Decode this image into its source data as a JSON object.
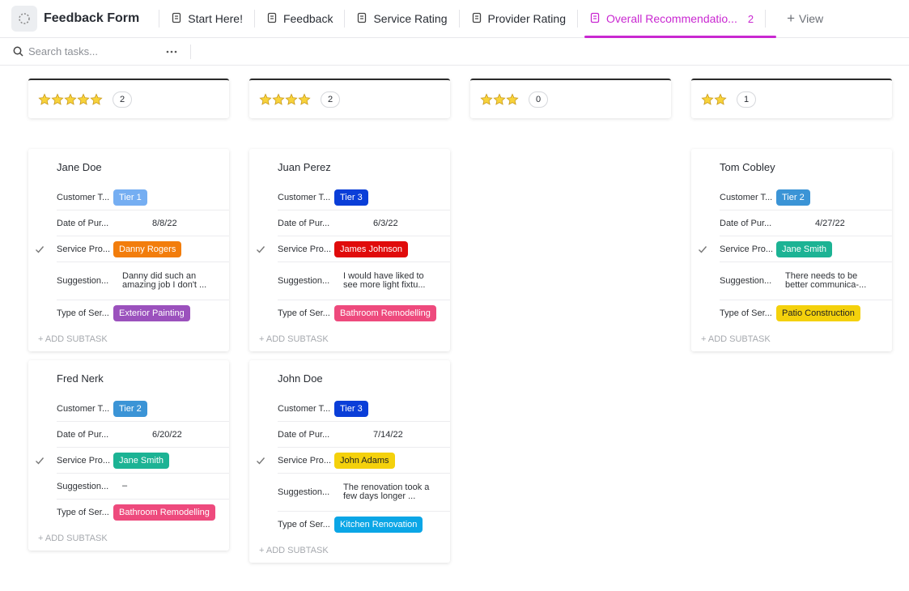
{
  "header": {
    "title": "Feedback Form",
    "tabs": [
      "Start Here!",
      "Feedback",
      "Service Rating",
      "Provider Rating",
      "Overall Recommendatio..."
    ],
    "active_tab_count": "2",
    "add_view": "View"
  },
  "toolbar": {
    "search_placeholder": "Search tasks..."
  },
  "columns": [
    {
      "rating": 5,
      "count": 2,
      "cards": [
        {
          "name": "Jane Doe",
          "fields": [
            {
              "label": "Customer T...",
              "value": "Tier 1",
              "color": "#75aef2"
            },
            {
              "label": "Date of Pur...",
              "value": "8/8/22"
            },
            {
              "label": "Service Pro...",
              "value": "Danny Rogers",
              "color": "#f27d0c"
            },
            {
              "label": "Suggestion...",
              "value": "Danny did such an amazing job I don't ..."
            },
            {
              "label": "Type of Ser...",
              "value": "Exterior Painting",
              "color": "#9b51bd"
            }
          ],
          "add_subtask": "+ ADD SUBTASK"
        },
        {
          "name": "Fred Nerk",
          "fields": [
            {
              "label": "Customer T...",
              "value": "Tier 2",
              "color": "#3b94d6"
            },
            {
              "label": "Date of Pur...",
              "value": "6/20/22"
            },
            {
              "label": "Service Pro...",
              "value": "Jane Smith",
              "color": "#1cb394"
            },
            {
              "label": "Suggestion...",
              "value": "–"
            },
            {
              "label": "Type of Ser...",
              "value": "Bathroom Remodelling",
              "color": "#ee4a7d"
            }
          ],
          "add_subtask": "+ ADD SUBTASK"
        }
      ]
    },
    {
      "rating": 4,
      "count": 2,
      "cards": [
        {
          "name": "Juan Perez",
          "fields": [
            {
              "label": "Customer T...",
              "value": "Tier 3",
              "color": "#0a3ed8"
            },
            {
              "label": "Date of Pur...",
              "value": "6/3/22"
            },
            {
              "label": "Service Pro...",
              "value": "James Johnson",
              "color": "#e00b0b"
            },
            {
              "label": "Suggestion...",
              "value": "I would have liked to see more light fixtu..."
            },
            {
              "label": "Type of Ser...",
              "value": "Bathroom Remodelling",
              "color": "#ee4a7d"
            }
          ],
          "add_subtask": "+ ADD SUBTASK"
        },
        {
          "name": "John Doe",
          "fields": [
            {
              "label": "Customer T...",
              "value": "Tier 3",
              "color": "#0a3ed8"
            },
            {
              "label": "Date of Pur...",
              "value": "7/14/22"
            },
            {
              "label": "Service Pro...",
              "value": "John Adams",
              "color": "#f4d10c"
            },
            {
              "label": "Suggestion...",
              "value": "The renovation took a few days longer ..."
            },
            {
              "label": "Type of Ser...",
              "value": "Kitchen Renovation",
              "color": "#0ba6e6"
            }
          ],
          "add_subtask": "+ ADD SUBTASK"
        }
      ]
    },
    {
      "rating": 3,
      "count": 0,
      "cards": []
    },
    {
      "rating": 2,
      "count": 1,
      "cards": [
        {
          "name": "Tom Cobley",
          "fields": [
            {
              "label": "Customer T...",
              "value": "Tier 2",
              "color": "#3b94d6"
            },
            {
              "label": "Date of Pur...",
              "value": "4/27/22"
            },
            {
              "label": "Service Pro...",
              "value": "Jane Smith",
              "color": "#1cb394"
            },
            {
              "label": "Suggestion...",
              "value": "There needs to be better communica-..."
            },
            {
              "label": "Type of Ser...",
              "value": "Patio Construction",
              "color": "#f4d10c"
            }
          ],
          "add_subtask": "+ ADD SUBTASK"
        }
      ]
    }
  ]
}
